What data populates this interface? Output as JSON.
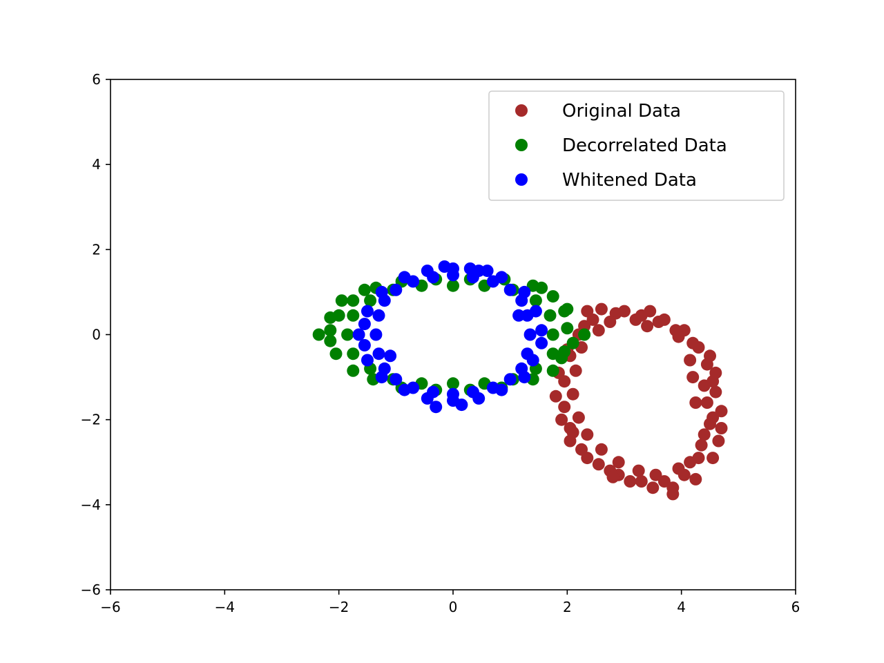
{
  "chart_data": {
    "type": "scatter",
    "title": "",
    "xlabel": "",
    "ylabel": "",
    "xlim": [
      -6,
      6
    ],
    "ylim": [
      -6,
      6
    ],
    "xticks": [
      -6,
      -4,
      -2,
      0,
      2,
      4,
      6
    ],
    "yticks": [
      -6,
      -4,
      -2,
      0,
      2,
      4,
      6
    ],
    "x_tick_labels": [
      "−6",
      "−4",
      "−2",
      "0",
      "2",
      "4",
      "6"
    ],
    "y_tick_labels": [
      "−6",
      "−4",
      "−2",
      "0",
      "2",
      "4",
      "6"
    ],
    "grid": false,
    "legend_position": "top-right",
    "series": [
      {
        "name": "Original Data",
        "color": "#a52a2a",
        "points": [
          [
            4.25,
            -1.6
          ],
          [
            4.4,
            -1.2
          ],
          [
            4.45,
            -0.7
          ],
          [
            4.3,
            -0.3
          ],
          [
            4.05,
            0.1
          ],
          [
            3.7,
            0.35
          ],
          [
            3.3,
            0.45
          ],
          [
            2.85,
            0.5
          ],
          [
            2.45,
            0.35
          ],
          [
            2.2,
            0.0
          ],
          [
            2.05,
            -0.5
          ],
          [
            1.95,
            -1.1
          ],
          [
            1.95,
            -1.7
          ],
          [
            2.05,
            -2.2
          ],
          [
            2.25,
            -2.7
          ],
          [
            2.55,
            -3.05
          ],
          [
            2.9,
            -3.3
          ],
          [
            3.3,
            -3.45
          ],
          [
            3.7,
            -3.45
          ],
          [
            4.05,
            -3.3
          ],
          [
            4.3,
            -2.9
          ],
          [
            4.4,
            -2.35
          ],
          [
            4.55,
            -1.95
          ],
          [
            4.45,
            -1.6
          ],
          [
            4.6,
            -1.35
          ],
          [
            4.2,
            -1.0
          ],
          [
            4.6,
            -0.9
          ],
          [
            4.5,
            -0.5
          ],
          [
            4.2,
            -0.2
          ],
          [
            3.9,
            0.1
          ],
          [
            3.95,
            -0.05
          ],
          [
            3.45,
            0.55
          ],
          [
            3.6,
            0.3
          ],
          [
            3.0,
            0.55
          ],
          [
            3.2,
            0.35
          ],
          [
            2.6,
            0.6
          ],
          [
            2.75,
            0.3
          ],
          [
            2.35,
            0.55
          ],
          [
            2.3,
            0.2
          ],
          [
            2.0,
            -0.35
          ],
          [
            2.25,
            -0.3
          ],
          [
            1.85,
            -0.9
          ],
          [
            2.15,
            -0.85
          ],
          [
            1.8,
            -1.45
          ],
          [
            2.1,
            -1.4
          ],
          [
            1.9,
            -2.0
          ],
          [
            2.2,
            -1.95
          ],
          [
            2.05,
            -2.5
          ],
          [
            2.35,
            -2.35
          ],
          [
            2.35,
            -2.9
          ],
          [
            2.6,
            -2.7
          ],
          [
            2.75,
            -3.2
          ],
          [
            2.9,
            -3.0
          ],
          [
            3.1,
            -3.45
          ],
          [
            3.25,
            -3.2
          ],
          [
            3.5,
            -3.6
          ],
          [
            3.55,
            -3.3
          ],
          [
            3.85,
            -3.6
          ],
          [
            3.95,
            -3.15
          ],
          [
            4.25,
            -3.4
          ],
          [
            4.15,
            -3.0
          ],
          [
            4.55,
            -2.9
          ],
          [
            4.35,
            -2.6
          ],
          [
            4.65,
            -2.5
          ],
          [
            4.5,
            -2.1
          ],
          [
            4.7,
            -2.2
          ],
          [
            4.7,
            -1.8
          ],
          [
            3.85,
            -3.75
          ],
          [
            2.8,
            -3.35
          ],
          [
            2.1,
            -2.3
          ],
          [
            4.15,
            -0.6
          ],
          [
            4.55,
            -1.1
          ],
          [
            2.55,
            0.1
          ],
          [
            3.4,
            0.2
          ]
        ]
      },
      {
        "name": "Decorrelated Data",
        "color": "#008000",
        "points": [
          [
            1.75,
            0.0
          ],
          [
            1.7,
            0.45
          ],
          [
            1.45,
            0.8
          ],
          [
            1.05,
            1.05
          ],
          [
            0.55,
            1.15
          ],
          [
            0.0,
            1.15
          ],
          [
            -0.55,
            1.15
          ],
          [
            -1.05,
            1.05
          ],
          [
            -1.45,
            0.8
          ],
          [
            -1.75,
            0.45
          ],
          [
            -1.85,
            0.0
          ],
          [
            -1.75,
            -0.45
          ],
          [
            -1.45,
            -0.8
          ],
          [
            -1.05,
            -1.05
          ],
          [
            -0.55,
            -1.15
          ],
          [
            0.0,
            -1.15
          ],
          [
            0.55,
            -1.15
          ],
          [
            1.05,
            -1.05
          ],
          [
            1.45,
            -0.8
          ],
          [
            1.75,
            -0.45
          ],
          [
            2.0,
            0.15
          ],
          [
            2.1,
            -0.2
          ],
          [
            1.95,
            0.55
          ],
          [
            1.9,
            -0.55
          ],
          [
            1.75,
            0.9
          ],
          [
            1.75,
            -0.85
          ],
          [
            1.4,
            1.15
          ],
          [
            1.4,
            -1.05
          ],
          [
            0.9,
            1.3
          ],
          [
            0.85,
            -1.25
          ],
          [
            0.3,
            1.3
          ],
          [
            0.3,
            -1.3
          ],
          [
            -0.3,
            1.3
          ],
          [
            -0.3,
            -1.3
          ],
          [
            -0.9,
            1.25
          ],
          [
            -0.9,
            -1.25
          ],
          [
            -1.35,
            1.1
          ],
          [
            -1.4,
            -1.05
          ],
          [
            -1.75,
            0.8
          ],
          [
            -1.75,
            -0.85
          ],
          [
            -2.0,
            0.45
          ],
          [
            -2.05,
            -0.45
          ],
          [
            -2.15,
            0.1
          ],
          [
            -2.15,
            -0.15
          ],
          [
            -2.35,
            0.0
          ],
          [
            -2.15,
            0.4
          ],
          [
            -1.95,
            0.8
          ],
          [
            -1.55,
            1.05
          ],
          [
            1.55,
            1.1
          ],
          [
            2.3,
            0.0
          ],
          [
            2.0,
            0.6
          ],
          [
            1.95,
            -0.4
          ]
        ]
      },
      {
        "name": "Whitened Data",
        "color": "#0000ff",
        "points": [
          [
            1.35,
            0.0
          ],
          [
            1.3,
            0.45
          ],
          [
            1.2,
            0.8
          ],
          [
            1.0,
            1.05
          ],
          [
            0.7,
            1.25
          ],
          [
            0.35,
            1.35
          ],
          [
            0.0,
            1.4
          ],
          [
            -0.35,
            1.35
          ],
          [
            -0.7,
            1.25
          ],
          [
            -1.0,
            1.05
          ],
          [
            -1.2,
            0.8
          ],
          [
            -1.3,
            0.45
          ],
          [
            -1.35,
            0.0
          ],
          [
            -1.3,
            -0.45
          ],
          [
            -1.2,
            -0.8
          ],
          [
            -1.0,
            -1.05
          ],
          [
            -0.7,
            -1.25
          ],
          [
            -0.35,
            -1.35
          ],
          [
            0.0,
            -1.4
          ],
          [
            0.35,
            -1.35
          ],
          [
            0.7,
            -1.25
          ],
          [
            1.0,
            -1.05
          ],
          [
            1.2,
            -0.8
          ],
          [
            1.3,
            -0.45
          ],
          [
            1.55,
            0.1
          ],
          [
            1.55,
            -0.2
          ],
          [
            1.45,
            0.55
          ],
          [
            1.4,
            -0.6
          ],
          [
            1.25,
            1.0
          ],
          [
            1.25,
            -1.0
          ],
          [
            0.85,
            1.35
          ],
          [
            0.85,
            -1.3
          ],
          [
            0.45,
            1.5
          ],
          [
            0.45,
            -1.5
          ],
          [
            0.0,
            1.55
          ],
          [
            0.0,
            -1.55
          ],
          [
            -0.45,
            1.5
          ],
          [
            -0.45,
            -1.5
          ],
          [
            -0.85,
            1.35
          ],
          [
            -0.85,
            -1.3
          ],
          [
            -1.25,
            1.0
          ],
          [
            -1.25,
            -1.0
          ],
          [
            -1.5,
            0.55
          ],
          [
            -1.5,
            -0.6
          ],
          [
            -1.65,
            0.0
          ],
          [
            -1.55,
            0.25
          ],
          [
            -1.55,
            -0.25
          ],
          [
            -0.15,
            1.6
          ],
          [
            0.15,
            -1.65
          ],
          [
            -0.3,
            -1.7
          ],
          [
            1.15,
            0.45
          ],
          [
            -1.1,
            -0.5
          ],
          [
            0.6,
            1.5
          ],
          [
            0.3,
            1.55
          ]
        ]
      }
    ]
  }
}
